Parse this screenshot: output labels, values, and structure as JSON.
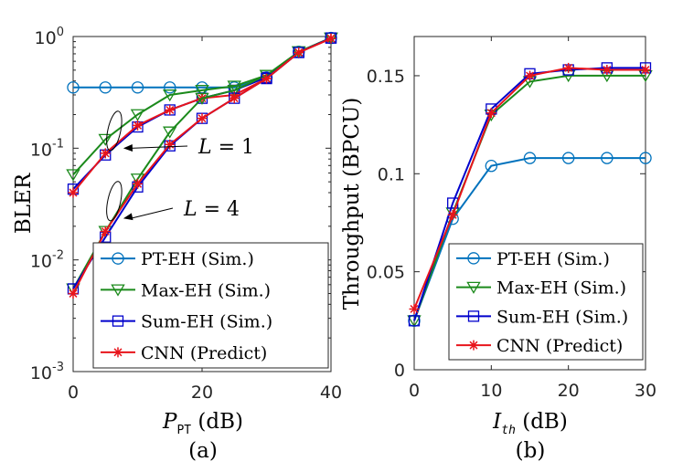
{
  "chart_data": [
    {
      "type": "line",
      "panel_label": "(a)",
      "xlabel_main": "P",
      "xlabel_sub": "PT",
      "xlabel_unit": " (dB)",
      "ylabel": "BLER",
      "yscale": "log",
      "xlim": [
        0,
        40
      ],
      "ylim": [
        0.001,
        1
      ],
      "xticks": [
        0,
        20,
        40
      ],
      "yticks": [
        {
          "value": 0.001,
          "base": "10",
          "exp": "-3"
        },
        {
          "value": 0.01,
          "base": "10",
          "exp": "-2"
        },
        {
          "value": 0.1,
          "base": "10",
          "exp": "-1"
        },
        {
          "value": 1,
          "base": "10",
          "exp": "0"
        }
      ],
      "x": [
        0,
        5,
        10,
        15,
        20,
        25,
        30,
        35,
        40
      ],
      "series": [
        {
          "name": "PT-EH (Sim.)",
          "color": "#0072BD",
          "marker": "circle",
          "values": [
            0.35,
            0.35,
            0.35,
            0.35,
            0.35,
            0.35,
            0.43,
            0.73,
            0.97
          ]
        },
        {
          "name": "Max-EH (Sim.) L=1",
          "color": "#1B8A1B",
          "marker": "triangle-down",
          "values": [
            0.058,
            0.12,
            0.2,
            0.3,
            0.33,
            0.36,
            0.45,
            0.73,
            0.97
          ]
        },
        {
          "name": "Sum-EH (Sim.) L=1",
          "color": "#0000CC",
          "marker": "square",
          "values": [
            0.043,
            0.087,
            0.155,
            0.22,
            0.28,
            0.33,
            0.43,
            0.72,
            0.97
          ]
        },
        {
          "name": "CNN (Predict) L=1",
          "color": "#E8141B",
          "marker": "star",
          "values": [
            0.04,
            0.09,
            0.16,
            0.22,
            0.28,
            0.3,
            0.42,
            0.72,
            0.96
          ]
        },
        {
          "name": "Max-EH (Sim.) L=4",
          "color": "#1B8A1B",
          "marker": "triangle-down",
          "values": [
            0.0055,
            0.018,
            0.053,
            0.14,
            0.28,
            0.33,
            0.45,
            0.73,
            0.97
          ]
        },
        {
          "name": "Sum-EH (Sim.) L=4",
          "color": "#0000CC",
          "marker": "square",
          "values": [
            0.0055,
            0.016,
            0.045,
            0.105,
            0.185,
            0.28,
            0.42,
            0.72,
            0.97
          ]
        },
        {
          "name": "CNN (Predict) L=4",
          "color": "#E8141B",
          "marker": "star",
          "values": [
            0.005,
            0.018,
            0.048,
            0.108,
            0.185,
            0.28,
            0.42,
            0.72,
            0.96
          ]
        }
      ],
      "annotations": [
        {
          "text_main": "L",
          "text_rest": " = 1",
          "target_x": 7.5,
          "target_y": 0.1
        },
        {
          "text_main": "L",
          "text_rest": " = 4",
          "target_x": 7.5,
          "target_y": 0.0235
        }
      ],
      "legend": {
        "placement": "bottom-right",
        "entries": [
          {
            "label": "PT-EH (Sim.)",
            "color": "#0072BD",
            "marker": "circle"
          },
          {
            "label": "Max-EH (Sim.)",
            "color": "#1B8A1B",
            "marker": "triangle-down"
          },
          {
            "label": "Sum-EH (Sim.)",
            "color": "#0000CC",
            "marker": "square"
          },
          {
            "label": "CNN (Predict)",
            "color": "#E8141B",
            "marker": "star"
          }
        ]
      }
    },
    {
      "type": "line",
      "panel_label": "(b)",
      "xlabel_main": "I",
      "xlabel_sub": "th",
      "xlabel_unit": " (dB)",
      "ylabel": "Throughput (BPCU)",
      "yscale": "linear",
      "xlim": [
        0,
        30
      ],
      "ylim": [
        0,
        0.17
      ],
      "xticks": [
        0,
        10,
        20,
        30
      ],
      "yticks": [
        {
          "value": 0,
          "label": "0"
        },
        {
          "value": 0.05,
          "label": "0.05"
        },
        {
          "value": 0.1,
          "label": "0.1"
        },
        {
          "value": 0.15,
          "label": "0.15"
        }
      ],
      "x": [
        0,
        5,
        10,
        15,
        20,
        25,
        30
      ],
      "series": [
        {
          "name": "PT-EH (Sim.)",
          "color": "#0072BD",
          "marker": "circle",
          "values": [
            0.025,
            0.077,
            0.104,
            0.108,
            0.108,
            0.108,
            0.108
          ]
        },
        {
          "name": "Max-EH (Sim.)",
          "color": "#1B8A1B",
          "marker": "triangle-down",
          "values": [
            0.025,
            0.08,
            0.13,
            0.147,
            0.15,
            0.15,
            0.15
          ]
        },
        {
          "name": "Sum-EH (Sim.)",
          "color": "#0000CC",
          "marker": "square",
          "values": [
            0.025,
            0.085,
            0.133,
            0.151,
            0.153,
            0.154,
            0.154
          ]
        },
        {
          "name": "CNN (Predict)",
          "color": "#E8141B",
          "marker": "star",
          "values": [
            0.031,
            0.079,
            0.131,
            0.15,
            0.154,
            0.153,
            0.153
          ]
        }
      ],
      "legend": {
        "placement": "bottom-right",
        "entries": [
          {
            "label": "PT-EH (Sim.)",
            "color": "#0072BD",
            "marker": "circle"
          },
          {
            "label": "Max-EH (Sim.)",
            "color": "#1B8A1B",
            "marker": "triangle-down"
          },
          {
            "label": "Sum-EH (Sim.)",
            "color": "#0000CC",
            "marker": "square"
          },
          {
            "label": "CNN (Predict)",
            "color": "#E8141B",
            "marker": "star"
          }
        ]
      }
    }
  ]
}
